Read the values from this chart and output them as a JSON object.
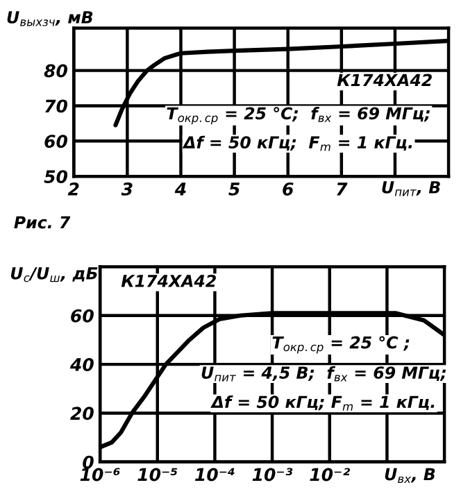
{
  "chart_data": [
    {
      "type": "line",
      "xlabel": "U$_{пит}$, В",
      "ylabel": "U$_{выхзч}$, мВ",
      "x": [
        2.78,
        2.9,
        3.05,
        3.2,
        3.37,
        3.5,
        3.7,
        4.0,
        4.5,
        5.0,
        6.0,
        7.0,
        8.0,
        9.0
      ],
      "series": [
        {
          "color": "#000000",
          "values": [
            64.5,
            69,
            73.5,
            77,
            80,
            81.5,
            83.5,
            84.9,
            85.3,
            85.6,
            86.1,
            86.8,
            87.6,
            88.4
          ]
        }
      ],
      "xlim": [
        2,
        9
      ],
      "ylim": [
        50,
        92
      ],
      "xticks": [
        2,
        3,
        4,
        5,
        6,
        7,
        {
          "value": 8,
          "label": null
        }
      ],
      "yticks": [
        50,
        60,
        70,
        80
      ],
      "grid": true,
      "line_style": "solid",
      "marker": "none",
      "annotations": [
        "К174ХА42",
        "T$_{окр.ср}$ = 25 °C;  f$_{вх}$ = 69 МГц;",
        "Δf = 50 кГц;  F$_{m}$ = 1 кГц.",
        "Рис. 7"
      ]
    },
    {
      "type": "line",
      "xlabel": "U$_{вх}$, В",
      "ylabel": "U$_{с}$/U$_{ш}$, дБ",
      "log": "x",
      "x": [
        1e-06,
        1.6e-06,
        2.3e-06,
        3.6e-06,
        6e-06,
        1.4e-05,
        3.6e-05,
        6.3e-05,
        0.00012,
        0.00028,
        0.001,
        0.01,
        0.14,
        0.44,
        1
      ],
      "series": [
        {
          "color": "#000000",
          "values": [
            6,
            8,
            12,
            20,
            27,
            40,
            50,
            55,
            58.5,
            60,
            61,
            61,
            61,
            58,
            52
          ]
        }
      ],
      "xlim": [
        1e-06,
        1
      ],
      "ylim": [
        0,
        80
      ],
      "xticks": [
        {
          "value": 1e-06,
          "label": "10⁻⁶"
        },
        {
          "value": 1e-05,
          "label": "10⁻⁵"
        },
        {
          "value": 0.0001,
          "label": "10⁻⁴"
        },
        {
          "value": 0.001,
          "label": "10⁻³"
        },
        {
          "value": 0.01,
          "label": "10⁻²"
        },
        {
          "value": 0.1,
          "label": null
        }
      ],
      "yticks": [
        0,
        20,
        40,
        60
      ],
      "grid": true,
      "line_style": "solid",
      "marker": "none",
      "annotations": [
        "К174ХА42",
        "T$_{окр.ср}$ = 25 °C ;",
        "U$_{пит}$ = 4,5 В;  f$_{вх}$ = 69 МГц;",
        "Δf = 50 кГц; F$_{m}$ = 1 кГц."
      ]
    }
  ]
}
